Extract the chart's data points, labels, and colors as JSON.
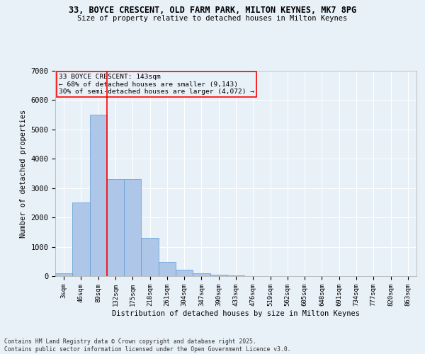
{
  "title_line1": "33, BOYCE CRESCENT, OLD FARM PARK, MILTON KEYNES, MK7 8PG",
  "title_line2": "Size of property relative to detached houses in Milton Keynes",
  "xlabel": "Distribution of detached houses by size in Milton Keynes",
  "ylabel": "Number of detached properties",
  "categories": [
    "3sqm",
    "46sqm",
    "89sqm",
    "132sqm",
    "175sqm",
    "218sqm",
    "261sqm",
    "304sqm",
    "347sqm",
    "390sqm",
    "433sqm",
    "476sqm",
    "519sqm",
    "562sqm",
    "605sqm",
    "648sqm",
    "691sqm",
    "734sqm",
    "777sqm",
    "820sqm",
    "863sqm"
  ],
  "values": [
    100,
    2500,
    5500,
    3300,
    3300,
    1300,
    480,
    220,
    90,
    60,
    30,
    0,
    0,
    0,
    0,
    0,
    0,
    0,
    0,
    0,
    0
  ],
  "bar_color": "#aec6e8",
  "bar_edge_color": "#5b9bd5",
  "vline_color": "red",
  "vline_pos": 2.5,
  "annotation_title": "33 BOYCE CRESCENT: 143sqm",
  "annotation_line2": "← 68% of detached houses are smaller (9,143)",
  "annotation_line3": "30% of semi-detached houses are larger (4,072) →",
  "annotation_box_color": "red",
  "background_color": "#e8f0f8",
  "grid_color": "white",
  "ylim": [
    0,
    7000
  ],
  "yticks": [
    0,
    1000,
    2000,
    3000,
    4000,
    5000,
    6000,
    7000
  ],
  "footer_line1": "Contains HM Land Registry data © Crown copyright and database right 2025.",
  "footer_line2": "Contains public sector information licensed under the Open Government Licence v3.0."
}
